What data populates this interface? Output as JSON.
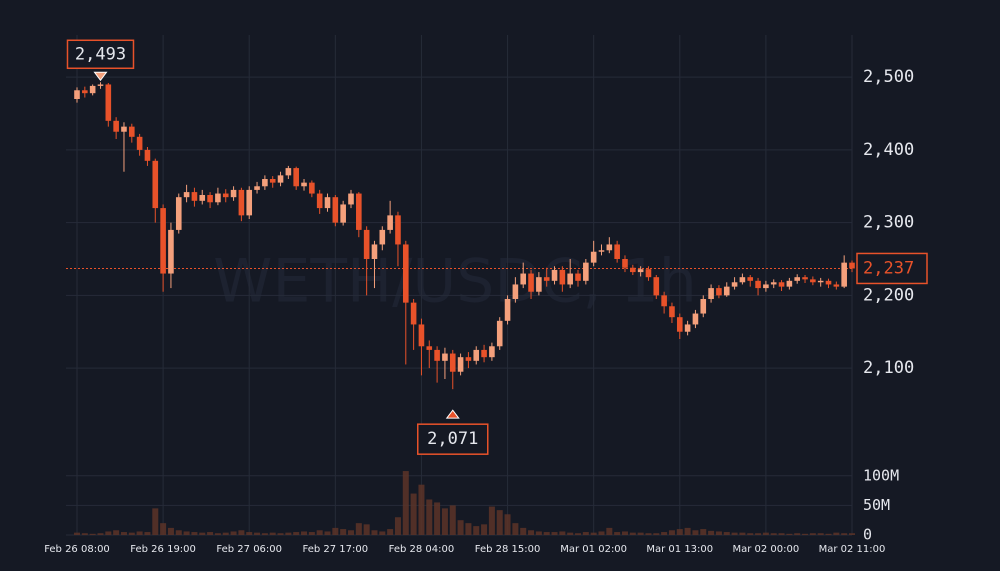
{
  "chart_data": {
    "type": "candlestick",
    "watermark": "WETH/USDC, 1h",
    "categories": [
      "Feb 26 08:00",
      null,
      null,
      null,
      null,
      null,
      null,
      null,
      null,
      null,
      null,
      "Feb 26 19:00",
      null,
      null,
      null,
      null,
      null,
      null,
      null,
      null,
      null,
      null,
      "Feb 27 06:00",
      null,
      null,
      null,
      null,
      null,
      null,
      null,
      null,
      null,
      null,
      "Feb 27 17:00",
      null,
      null,
      null,
      null,
      null,
      null,
      null,
      null,
      null,
      null,
      "Feb 28 04:00",
      null,
      null,
      null,
      null,
      null,
      null,
      null,
      null,
      null,
      null,
      "Feb 28 15:00",
      null,
      null,
      null,
      null,
      null,
      null,
      null,
      null,
      null,
      null,
      "Mar 01 02:00",
      null,
      null,
      null,
      null,
      null,
      null,
      null,
      null,
      null,
      null,
      "Mar 01 13:00",
      null,
      null,
      null,
      null,
      null,
      null,
      null,
      null,
      null,
      null,
      "Mar 02 00:00",
      null,
      null,
      null,
      null,
      null,
      null,
      null,
      null,
      null,
      null,
      "Mar 02 11:00"
    ],
    "open": [
      2470,
      2482,
      2478,
      2488,
      2490,
      2440,
      2425,
      2432,
      2418,
      2400,
      2385,
      2320,
      2230,
      2290,
      2335,
      2342,
      2330,
      2338,
      2328,
      2340,
      2335,
      2345,
      2310,
      2345,
      2350,
      2360,
      2355,
      2365,
      2375,
      2350,
      2355,
      2340,
      2320,
      2335,
      2300,
      2325,
      2340,
      2290,
      2250,
      2270,
      2290,
      2310,
      2270,
      2190,
      2160,
      2130,
      2125,
      2110,
      2120,
      2095,
      2115,
      2110,
      2125,
      2115,
      2130,
      2165,
      2195,
      2215,
      2230,
      2205,
      2225,
      2220,
      2235,
      2215,
      2230,
      2220,
      2245,
      2260,
      2262,
      2270,
      2250,
      2238,
      2232,
      2236,
      2225,
      2200,
      2185,
      2170,
      2150,
      2160,
      2175,
      2195,
      2210,
      2200,
      2212,
      2218,
      2225,
      2220,
      2210,
      2215,
      2218,
      2212,
      2220,
      2225,
      2222,
      2218,
      2220,
      2215,
      2212,
      2245
    ],
    "high": [
      2486,
      2487,
      2490,
      2493,
      2492,
      2445,
      2438,
      2436,
      2422,
      2404,
      2388,
      2325,
      2300,
      2340,
      2352,
      2348,
      2345,
      2342,
      2348,
      2346,
      2350,
      2348,
      2350,
      2356,
      2365,
      2364,
      2370,
      2378,
      2377,
      2360,
      2358,
      2345,
      2340,
      2338,
      2330,
      2345,
      2342,
      2295,
      2275,
      2295,
      2330,
      2315,
      2275,
      2195,
      2168,
      2138,
      2130,
      2128,
      2125,
      2120,
      2122,
      2130,
      2132,
      2135,
      2170,
      2200,
      2225,
      2245,
      2235,
      2232,
      2238,
      2240,
      2240,
      2250,
      2235,
      2250,
      2275,
      2270,
      2280,
      2275,
      2255,
      2242,
      2240,
      2240,
      2228,
      2205,
      2190,
      2175,
      2165,
      2180,
      2200,
      2215,
      2214,
      2218,
      2225,
      2230,
      2228,
      2224,
      2220,
      2222,
      2221,
      2224,
      2229,
      2228,
      2226,
      2224,
      2223,
      2219,
      2255,
      2248
    ],
    "low": [
      2465,
      2472,
      2475,
      2484,
      2432,
      2415,
      2370,
      2410,
      2392,
      2378,
      2300,
      2205,
      2210,
      2285,
      2328,
      2322,
      2325,
      2320,
      2324,
      2328,
      2330,
      2302,
      2305,
      2340,
      2345,
      2348,
      2350,
      2360,
      2345,
      2344,
      2335,
      2312,
      2315,
      2295,
      2296,
      2320,
      2280,
      2200,
      2210,
      2262,
      2285,
      2240,
      2105,
      2125,
      2090,
      2100,
      2080,
      2085,
      2071,
      2090,
      2100,
      2105,
      2108,
      2110,
      2125,
      2160,
      2190,
      2210,
      2195,
      2200,
      2212,
      2215,
      2205,
      2210,
      2212,
      2215,
      2240,
      2255,
      2258,
      2245,
      2232,
      2228,
      2226,
      2220,
      2195,
      2175,
      2162,
      2140,
      2145,
      2155,
      2170,
      2190,
      2196,
      2198,
      2208,
      2215,
      2212,
      2200,
      2205,
      2210,
      2206,
      2208,
      2216,
      2217,
      2214,
      2212,
      2210,
      2208,
      2210,
      2232
    ],
    "close": [
      2482,
      2478,
      2488,
      2490,
      2440,
      2425,
      2432,
      2418,
      2400,
      2385,
      2320,
      2230,
      2290,
      2335,
      2342,
      2330,
      2338,
      2328,
      2340,
      2335,
      2345,
      2310,
      2345,
      2350,
      2360,
      2355,
      2365,
      2375,
      2350,
      2355,
      2340,
      2320,
      2335,
      2300,
      2325,
      2340,
      2290,
      2250,
      2270,
      2290,
      2310,
      2270,
      2190,
      2160,
      2130,
      2125,
      2110,
      2120,
      2095,
      2115,
      2110,
      2125,
      2115,
      2130,
      2165,
      2195,
      2215,
      2230,
      2205,
      2225,
      2220,
      2235,
      2215,
      2230,
      2220,
      2245,
      2260,
      2262,
      2270,
      2250,
      2238,
      2232,
      2236,
      2225,
      2200,
      2185,
      2170,
      2150,
      2160,
      2175,
      2195,
      2210,
      2200,
      2212,
      2218,
      2225,
      2220,
      2210,
      2215,
      2218,
      2212,
      2220,
      2225,
      2222,
      2218,
      2220,
      2215,
      2212,
      2245,
      2237
    ],
    "volume": [
      4,
      3,
      2,
      3,
      6,
      8,
      5,
      4,
      6,
      5,
      45,
      20,
      12,
      8,
      6,
      5,
      4,
      5,
      3,
      4,
      6,
      8,
      5,
      4,
      3,
      4,
      3,
      4,
      5,
      6,
      5,
      8,
      6,
      12,
      10,
      8,
      20,
      18,
      8,
      6,
      10,
      30,
      108,
      70,
      85,
      60,
      55,
      45,
      50,
      25,
      20,
      15,
      18,
      48,
      42,
      35,
      20,
      12,
      8,
      6,
      5,
      5,
      6,
      4,
      3,
      5,
      4,
      6,
      12,
      5,
      6,
      4,
      4,
      3,
      3,
      5,
      8,
      10,
      12,
      8,
      10,
      7,
      6,
      5,
      4,
      4,
      3,
      3,
      4,
      3,
      3,
      2,
      3,
      2,
      3,
      3,
      2,
      4,
      3,
      3
    ],
    "up_color": "#f4a07c",
    "down_color": "#e8522a",
    "volume_color": "#5c3428",
    "ylim": [
      2008,
      2558
    ],
    "yticks": [
      {
        "value": 2100,
        "label": "2,100"
      },
      {
        "value": 2200,
        "label": "2,200"
      },
      {
        "value": 2300,
        "label": "2,300"
      },
      {
        "value": 2400,
        "label": "2,400"
      },
      {
        "value": 2500,
        "label": "2,500"
      }
    ],
    "volume_ylim": [
      0,
      125
    ],
    "volume_yticks": [
      0,
      {
        "value": 50,
        "label": "50M"
      },
      {
        "value": 100,
        "label": "100M"
      }
    ],
    "annotations": {
      "max": {
        "value": 2493,
        "label": "2,493"
      },
      "min": {
        "value": 2071,
        "label": "2,071"
      },
      "last": {
        "value": 2237,
        "label": "2,237"
      }
    },
    "grid": true
  }
}
